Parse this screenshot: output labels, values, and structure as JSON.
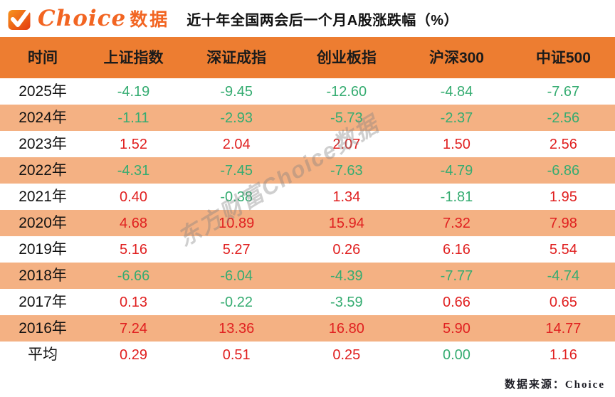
{
  "logo": {
    "icon": "check-icon",
    "brand": "Choice",
    "suffix": "数据"
  },
  "title": "近十年全国两会后一个月A股涨跌幅（%）",
  "watermark": "东方财富Choice数据",
  "source": "数据来源：Choice",
  "colors": {
    "header_bg": "#ED7D31",
    "row_alt_bg": "#F4B183",
    "positive_red": "#E02020",
    "negative_green": "#35AC71",
    "logo_orange": "#F26522"
  },
  "chart_data": {
    "type": "table",
    "title": "近十年全国两会后一个月A股涨跌幅（%）",
    "columns": [
      "时间",
      "上证指数",
      "深证成指",
      "创业板指",
      "沪深300",
      "中证500"
    ],
    "rows": [
      {
        "label": "2025年",
        "values": [
          "-4.19",
          "-9.45",
          "-12.60",
          "-4.84",
          "-7.67"
        ]
      },
      {
        "label": "2024年",
        "values": [
          "-1.11",
          "-2.93",
          "-5.73",
          "-2.37",
          "-2.56"
        ]
      },
      {
        "label": "2023年",
        "values": [
          "1.52",
          "2.04",
          "2.07",
          "1.50",
          "2.56"
        ]
      },
      {
        "label": "2022年",
        "values": [
          "-4.31",
          "-7.45",
          "-7.63",
          "-4.79",
          "-6.86"
        ]
      },
      {
        "label": "2021年",
        "values": [
          "0.40",
          "-0.38",
          "1.34",
          "-1.81",
          "1.95"
        ]
      },
      {
        "label": "2020年",
        "values": [
          "4.68",
          "10.89",
          "15.94",
          "7.32",
          "7.98"
        ]
      },
      {
        "label": "2019年",
        "values": [
          "5.16",
          "5.27",
          "0.26",
          "6.16",
          "5.54"
        ]
      },
      {
        "label": "2018年",
        "values": [
          "-6.66",
          "-6.04",
          "-4.39",
          "-7.77",
          "-4.74"
        ]
      },
      {
        "label": "2017年",
        "values": [
          "0.13",
          "-0.22",
          "-3.59",
          "0.66",
          "0.65"
        ]
      },
      {
        "label": "2016年",
        "values": [
          "7.24",
          "13.36",
          "16.80",
          "5.90",
          "14.77"
        ]
      },
      {
        "label": "平均",
        "values": [
          "0.29",
          "0.51",
          "0.25",
          "0.00",
          "1.16"
        ]
      }
    ],
    "value_color_rule": "negative and zero values green (#35AC71), positive values red (#E02020)",
    "row_stripe_rule": "rows alternate white / #F4B183 starting with white for 2025年"
  }
}
